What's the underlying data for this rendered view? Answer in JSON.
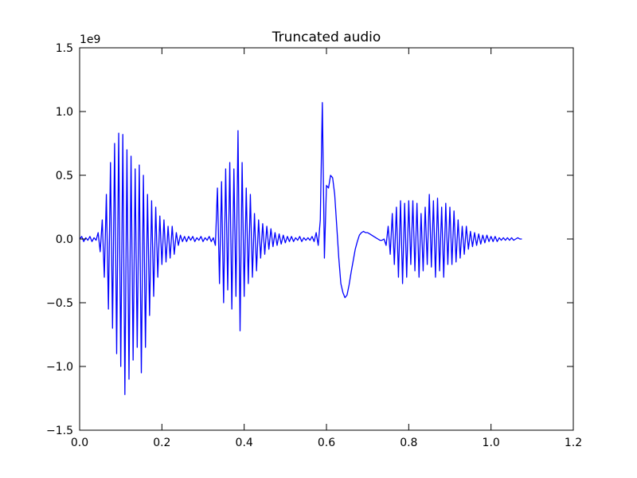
{
  "chart_data": {
    "type": "line",
    "title": "Truncated audio",
    "y_offset_label": "1e9",
    "xlim": [
      0,
      1.2
    ],
    "ylim": [
      -1.5,
      1.5
    ],
    "xticks": [
      {
        "value": 0,
        "label": "0.0"
      },
      0.2,
      0.4,
      0.6,
      0.8,
      {
        "value": 1,
        "label": "1.0"
      },
      1.2
    ],
    "yticks": [
      {
        "value": -1.5,
        "label": "−1.5"
      },
      {
        "value": -1,
        "label": "−1.0"
      },
      {
        "value": -0.5,
        "label": "−0.5"
      },
      {
        "value": 0,
        "label": "0.0"
      },
      0.5,
      {
        "value": 1,
        "label": "1.0"
      },
      1.5
    ],
    "grid": false,
    "x": [
      0,
      0.005,
      0.01,
      0.015,
      0.02,
      0.025,
      0.03,
      0.035,
      0.04,
      0.045,
      0.05,
      0.055,
      0.06,
      0.065,
      0.07,
      0.075,
      0.08,
      0.085,
      0.09,
      0.095,
      0.1,
      0.105,
      0.11,
      0.115,
      0.12,
      0.125,
      0.13,
      0.135,
      0.14,
      0.145,
      0.15,
      0.155,
      0.16,
      0.165,
      0.17,
      0.175,
      0.18,
      0.185,
      0.19,
      0.195,
      0.2,
      0.205,
      0.21,
      0.215,
      0.22,
      0.225,
      0.23,
      0.235,
      0.24,
      0.245,
      0.25,
      0.255,
      0.26,
      0.265,
      0.27,
      0.275,
      0.28,
      0.285,
      0.29,
      0.295,
      0.3,
      0.305,
      0.31,
      0.315,
      0.32,
      0.325,
      0.33,
      0.335,
      0.34,
      0.345,
      0.35,
      0.355,
      0.36,
      0.365,
      0.37,
      0.375,
      0.38,
      0.385,
      0.39,
      0.395,
      0.4,
      0.405,
      0.41,
      0.415,
      0.42,
      0.425,
      0.43,
      0.435,
      0.44,
      0.445,
      0.45,
      0.455,
      0.46,
      0.465,
      0.47,
      0.475,
      0.48,
      0.485,
      0.49,
      0.495,
      0.5,
      0.505,
      0.51,
      0.515,
      0.52,
      0.525,
      0.53,
      0.535,
      0.54,
      0.545,
      0.55,
      0.555,
      0.56,
      0.565,
      0.57,
      0.575,
      0.58,
      0.585,
      0.59,
      0.595,
      0.6,
      0.605,
      0.61,
      0.615,
      0.62,
      0.625,
      0.63,
      0.635,
      0.64,
      0.645,
      0.65,
      0.655,
      0.66,
      0.665,
      0.67,
      0.675,
      0.68,
      0.685,
      0.69,
      0.695,
      0.7,
      0.705,
      0.71,
      0.715,
      0.72,
      0.725,
      0.73,
      0.735,
      0.74,
      0.745,
      0.75,
      0.755,
      0.76,
      0.765,
      0.77,
      0.775,
      0.78,
      0.785,
      0.79,
      0.795,
      0.8,
      0.805,
      0.81,
      0.815,
      0.82,
      0.825,
      0.83,
      0.835,
      0.84,
      0.845,
      0.85,
      0.855,
      0.86,
      0.865,
      0.87,
      0.875,
      0.88,
      0.885,
      0.89,
      0.895,
      0.9,
      0.905,
      0.91,
      0.915,
      0.92,
      0.925,
      0.93,
      0.935,
      0.94,
      0.945,
      0.95,
      0.955,
      0.96,
      0.965,
      0.97,
      0.975,
      0.98,
      0.985,
      0.99,
      0.995,
      1,
      1.005,
      1.01,
      1.015,
      1.02,
      1.025,
      1.03,
      1.035,
      1.04,
      1.045,
      1.05,
      1.055,
      1.06,
      1.065,
      1.07,
      1.075
    ],
    "series": [
      {
        "color": "#0000ff",
        "values": [
          0,
          0.02,
          -0.02,
          0.01,
          -0.01,
          0.02,
          -0.02,
          0.01,
          -0.01,
          0.05,
          -0.1,
          0.15,
          -0.3,
          0.35,
          -0.55,
          0.6,
          -0.7,
          0.75,
          -0.9,
          0.83,
          -1.0,
          0.82,
          -1.22,
          0.7,
          -1.1,
          0.65,
          -0.95,
          0.55,
          -0.85,
          0.58,
          -1.05,
          0.5,
          -0.85,
          0.35,
          -0.6,
          0.3,
          -0.45,
          0.25,
          -0.3,
          0.18,
          -0.2,
          0.15,
          -0.18,
          0.1,
          -0.15,
          0.1,
          -0.12,
          0.05,
          -0.05,
          0.03,
          -0.02,
          0.02,
          -0.02,
          0.02,
          -0.01,
          0.02,
          -0.02,
          0.01,
          -0.01,
          0.02,
          -0.02,
          0.01,
          -0.01,
          0.02,
          -0.02,
          0.01,
          -0.05,
          0.4,
          -0.35,
          0.45,
          -0.5,
          0.55,
          -0.4,
          0.6,
          -0.55,
          0.55,
          -0.45,
          0.85,
          -0.72,
          0.6,
          -0.45,
          0.4,
          -0.35,
          0.35,
          -0.3,
          0.2,
          -0.25,
          0.15,
          -0.15,
          0.12,
          -0.12,
          0.1,
          -0.08,
          0.08,
          -0.06,
          0.05,
          -0.05,
          0.04,
          -0.04,
          0.03,
          -0.03,
          0.02,
          -0.02,
          0.02,
          -0.02,
          0.01,
          -0.01,
          0.02,
          -0.02,
          0.01,
          -0.01,
          0.01,
          -0.01,
          0.02,
          -0.02,
          0.05,
          -0.05,
          0.15,
          1.07,
          -0.15,
          0.42,
          0.4,
          0.5,
          0.48,
          0.35,
          0.1,
          -0.15,
          -0.35,
          -0.42,
          -0.46,
          -0.44,
          -0.36,
          -0.26,
          -0.17,
          -0.08,
          -0.02,
          0.03,
          0.05,
          0.06,
          0.05,
          0.05,
          0.04,
          0.03,
          0.02,
          0.01,
          0,
          -0.01,
          -0.01,
          0,
          -0.05,
          0.1,
          -0.12,
          0.2,
          -0.2,
          0.25,
          -0.3,
          0.3,
          -0.35,
          0.28,
          -0.3,
          0.3,
          -0.2,
          0.3,
          -0.25,
          0.28,
          -0.3,
          0.2,
          -0.25,
          0.25,
          -0.2,
          0.35,
          -0.22,
          0.3,
          -0.3,
          0.32,
          -0.25,
          0.25,
          -0.3,
          0.28,
          -0.2,
          0.25,
          -0.2,
          0.22,
          -0.18,
          0.15,
          -0.15,
          0.1,
          -0.12,
          0.1,
          -0.08,
          0.06,
          -0.06,
          0.05,
          -0.05,
          0.04,
          -0.04,
          0.03,
          -0.03,
          0.03,
          -0.02,
          0.02,
          -0.02,
          0.02,
          -0.02,
          0.01,
          -0.01,
          0.01,
          -0.01,
          0.01,
          -0.01,
          0.01,
          -0.01,
          0,
          0.01,
          0,
          0
        ]
      }
    ]
  }
}
